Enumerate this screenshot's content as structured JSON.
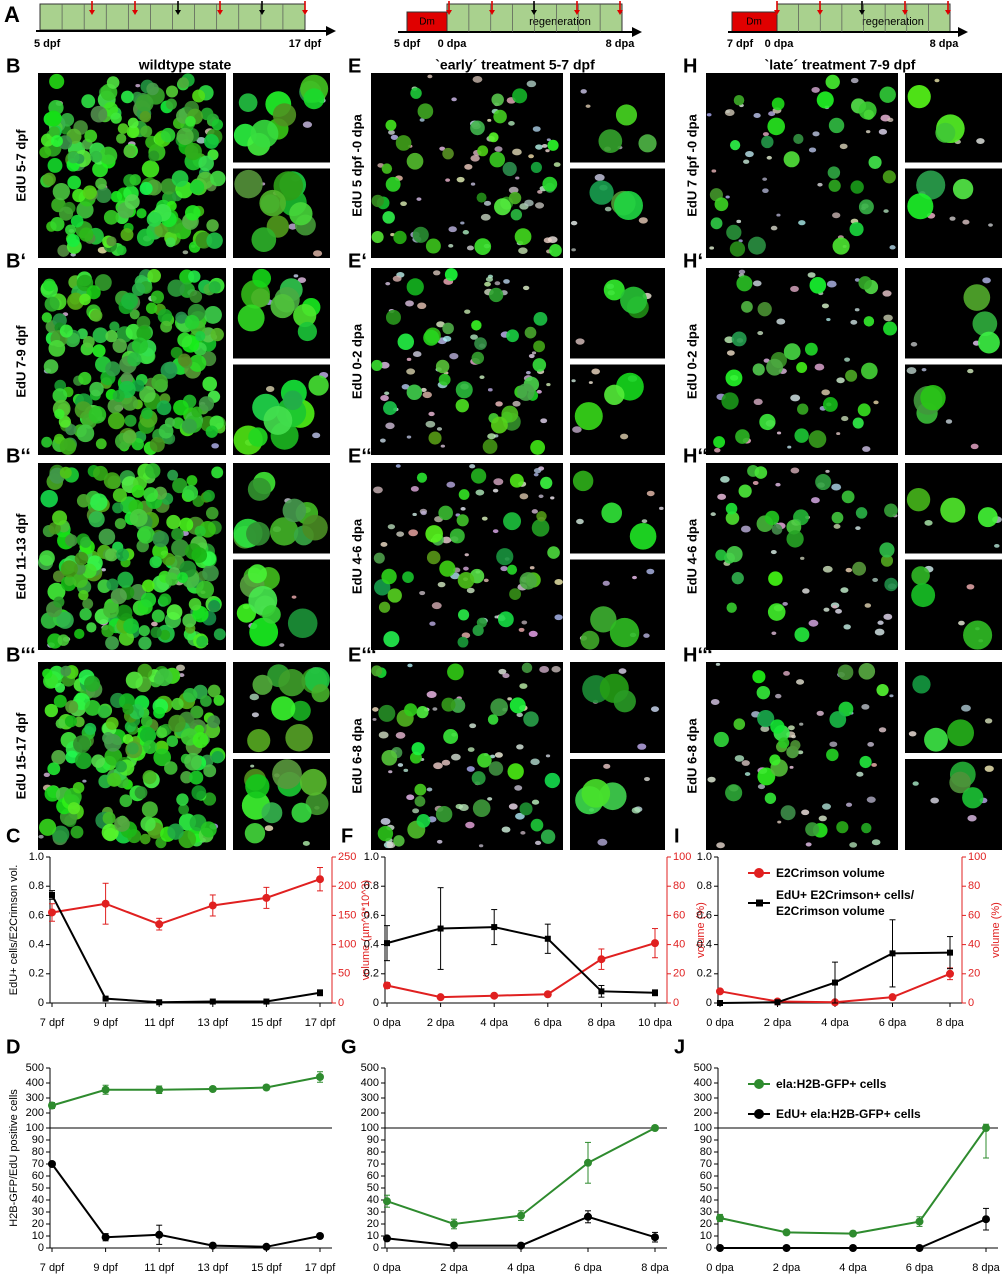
{
  "timeline": {
    "label": "A",
    "wildtype": {
      "start": "5 dpf",
      "end": "17 dpf"
    },
    "early": {
      "treatment": "Dm",
      "phase": "regeneration",
      "start": "5 dpf",
      "zero": "0 dpa",
      "end": "8 dpa"
    },
    "late": {
      "treatment": "Dm",
      "phase": "regeneration",
      "start": "7 dpf",
      "zero": "0 dpa",
      "end": "8 dpa"
    }
  },
  "image_columns": [
    {
      "header": "wildtype state",
      "rows": [
        {
          "letter": "B",
          "label": "EdU 5-7 dpf"
        },
        {
          "letter": "B‘",
          "label": "EdU 7-9 dpf"
        },
        {
          "letter": "B‘‘",
          "label": "EdU 11-13 dpf"
        },
        {
          "letter": "B‘‘‘",
          "label": "EdU 15-17 dpf"
        }
      ]
    },
    {
      "header": "`early´ treatment 5-7 dpf",
      "rows": [
        {
          "letter": "E",
          "label": "EdU 5 dpf -0 dpa"
        },
        {
          "letter": "E‘",
          "label": "EdU 0-2 dpa"
        },
        {
          "letter": "E‘‘",
          "label": "EdU 4-6 dpa"
        },
        {
          "letter": "E‘‘‘",
          "label": "EdU 6-8 dpa"
        }
      ]
    },
    {
      "header": "`late´ treatment 7-9 dpf",
      "rows": [
        {
          "letter": "H",
          "label": "EdU 7 dpf -0 dpa"
        },
        {
          "letter": "H‘",
          "label": "EdU 0-2 dpa"
        },
        {
          "letter": "H‘‘",
          "label": "EdU 4-6 dpa"
        },
        {
          "letter": "H‘‘‘",
          "label": "EdU 6-8 dpa"
        }
      ]
    }
  ],
  "chart_data": [
    {
      "type": "line",
      "panel": "C",
      "categories": [
        "7 dpf",
        "9 dpf",
        "11 dpf",
        "13 dpf",
        "15 dpf",
        "17 dpf"
      ],
      "ylabel": "EdU+ cells/E2Crimson vol.",
      "y2label": "volume (µm^3*10^3)",
      "ylim": [
        0,
        1
      ],
      "yticks": [
        0,
        0.2,
        0.4,
        0.6,
        0.8,
        {
          "value": 1,
          "label": "1.0"
        }
      ],
      "y2lim": [
        0,
        250
      ],
      "y2ticks": [
        0,
        50,
        100,
        150,
        200,
        250
      ],
      "series": [
        {
          "color": "#e02020",
          "marker": "circle",
          "axis": "y2",
          "values": [
            155,
            170,
            135,
            167,
            180,
            212
          ],
          "errors": [
            15,
            35,
            10,
            18,
            18,
            20
          ]
        },
        {
          "color": "#000000",
          "marker": "square",
          "values": [
            0.74,
            0.03,
            0.005,
            0.01,
            0.01,
            0.07
          ],
          "errors": [
            0.03,
            0.005,
            0.003,
            0.005,
            0.005,
            0.02
          ]
        }
      ]
    },
    {
      "type": "line",
      "panel": "F",
      "categories": [
        "0 dpa",
        "2 dpa",
        "4 dpa",
        "6 dpa",
        "8 dpa",
        "10 dpa"
      ],
      "y2label": "volume (%)",
      "ylim": [
        0,
        1
      ],
      "yticks": [
        0,
        0.2,
        0.4,
        0.6,
        0.8,
        {
          "value": 1,
          "label": "1.0"
        }
      ],
      "y2lim": [
        0,
        100
      ],
      "y2ticks": [
        0,
        20,
        40,
        60,
        80,
        100
      ],
      "series": [
        {
          "color": "#e02020",
          "marker": "circle",
          "axis": "y2",
          "values": [
            12,
            4,
            5,
            6,
            30,
            41
          ],
          "errors": [
            2,
            1,
            1,
            1,
            7,
            10
          ]
        },
        {
          "color": "#000000",
          "marker": "square",
          "values": [
            0.41,
            0.51,
            0.52,
            0.44,
            0.08,
            0.07
          ],
          "errors": [
            0.12,
            0.28,
            0.12,
            0.1,
            0.04,
            0.02
          ]
        }
      ]
    },
    {
      "type": "line",
      "panel": "I",
      "categories": [
        "0 dpa",
        "2 dpa",
        "4 dpa",
        "6 dpa",
        "8 dpa"
      ],
      "y2label": "volume (%)",
      "legend": "upper left",
      "ylim": [
        0,
        1
      ],
      "yticks": [
        0,
        0.2,
        0.4,
        0.6,
        0.8,
        {
          "value": 1,
          "label": "1.0"
        }
      ],
      "y2lim": [
        0,
        100
      ],
      "y2ticks": [
        0,
        20,
        40,
        60,
        80,
        100
      ],
      "series": [
        {
          "name": "E2Crimson volume",
          "color": "#e02020",
          "marker": "circle",
          "axis": "y2",
          "values": [
            8,
            1,
            0.5,
            4,
            20
          ],
          "errors": [
            1,
            0.5,
            0.5,
            1,
            4
          ]
        },
        {
          "name": "EdU+ E2Crimson+ cells/ E2Crimson volume",
          "color": "#000000",
          "marker": "square",
          "values": [
            0,
            0.005,
            0.14,
            0.34,
            0.345
          ],
          "errors": [
            0,
            0.01,
            0.14,
            0.23,
            0.11
          ]
        }
      ]
    },
    {
      "type": "line",
      "panel": "D",
      "categories": [
        "7 dpf",
        "9 dpf",
        "11 dpf",
        "13 dpf",
        "15 dpf",
        "17 dpf"
      ],
      "ylabel": "H2B-GFP/EdU positive cells",
      "ylim": [
        0,
        500
      ],
      "ybreak": 100,
      "yticks": [
        0,
        10,
        20,
        30,
        40,
        50,
        60,
        70,
        80,
        90,
        100,
        200,
        300,
        400,
        500
      ],
      "series": [
        {
          "color": "#2e8b2e",
          "marker": "circle",
          "values": [
            250,
            355,
            355,
            360,
            370,
            440
          ],
          "errors": [
            20,
            30,
            25,
            10,
            15,
            35
          ]
        },
        {
          "color": "#000000",
          "marker": "circle",
          "values": [
            70,
            9,
            11,
            2,
            1,
            10
          ],
          "errors": [
            1,
            3,
            8,
            1,
            1,
            1
          ]
        }
      ]
    },
    {
      "type": "line",
      "panel": "G",
      "categories": [
        "0 dpa",
        "2 dpa",
        "4 dpa",
        "6 dpa",
        "8 dpa"
      ],
      "ylim": [
        0,
        500
      ],
      "ybreak": 100,
      "yticks": [
        0,
        10,
        20,
        30,
        40,
        50,
        60,
        70,
        80,
        90,
        100,
        200,
        300,
        400,
        500
      ],
      "series": [
        {
          "color": "#2e8b2e",
          "marker": "circle",
          "values": [
            39,
            20,
            27,
            71,
            100
          ],
          "errors": [
            5,
            4,
            4,
            17,
            1
          ]
        },
        {
          "color": "#000000",
          "marker": "circle",
          "values": [
            8,
            2,
            2,
            26,
            9
          ],
          "errors": [
            2,
            1,
            1,
            5,
            4
          ]
        }
      ]
    },
    {
      "type": "line",
      "panel": "J",
      "categories": [
        "0 dpa",
        "2 dpa",
        "4 dpa",
        "6 dpa",
        "8 dpa"
      ],
      "legend": "upper left",
      "ylim": [
        0,
        500
      ],
      "ybreak": 100,
      "yticks": [
        0,
        10,
        20,
        30,
        40,
        50,
        60,
        70,
        80,
        90,
        100,
        200,
        300,
        400,
        500
      ],
      "series": [
        {
          "name": "ela:H2B-GFP+ cells",
          "color": "#2e8b2e",
          "marker": "circle",
          "values": [
            25,
            13,
            12,
            22,
            100
          ],
          "errors": [
            3,
            1,
            2,
            4,
            25
          ]
        },
        {
          "name": "EdU+ ela:H2B-GFP+ cells",
          "color": "#000000",
          "marker": "circle",
          "values": [
            0,
            0,
            0,
            0,
            24
          ],
          "errors": [
            0,
            0,
            0,
            0,
            9
          ]
        }
      ]
    }
  ]
}
